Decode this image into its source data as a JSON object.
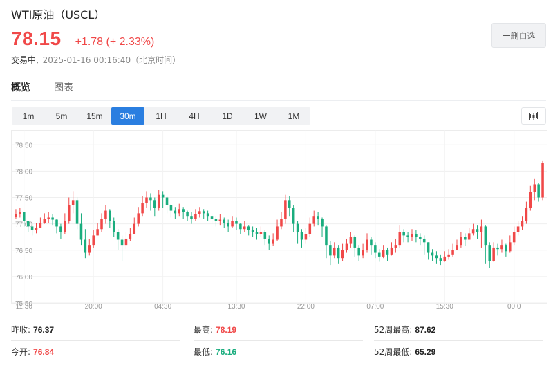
{
  "header": {
    "title": "WTI原油（USCL）",
    "price": "78.15",
    "change": "+1.78 (+ 2.33%)",
    "status": "交易中,",
    "timestamp": "2025-01-16 00:16:40（北京时间）",
    "watch_button": "一删自选"
  },
  "tabs": [
    {
      "label": "概览",
      "active": true
    },
    {
      "label": "图表",
      "active": false
    }
  ],
  "intervals": [
    {
      "label": "1m",
      "active": false
    },
    {
      "label": "5m",
      "active": false
    },
    {
      "label": "15m",
      "active": false
    },
    {
      "label": "30m",
      "active": true
    },
    {
      "label": "1H",
      "active": false
    },
    {
      "label": "4H",
      "active": false
    },
    {
      "label": "1D",
      "active": false
    },
    {
      "label": "1W",
      "active": false
    },
    {
      "label": "1M",
      "active": false
    }
  ],
  "colors": {
    "up": "#f04848",
    "down": "#1aad7e",
    "accent": "#2a7ee0"
  },
  "chart_data": {
    "type": "candlestick",
    "title": "",
    "xlabel": "",
    "ylabel": "",
    "ylim": [
      75.5,
      78.7
    ],
    "y_ticks": [
      "78.50",
      "78.00",
      "77.50",
      "77.00",
      "76.50",
      "76.00",
      "75.50"
    ],
    "x_ticks": [
      {
        "label": "11:30",
        "index": 2
      },
      {
        "label": "20:00",
        "index": 19
      },
      {
        "label": "04:30",
        "index": 36
      },
      {
        "label": "13:30",
        "index": 54
      },
      {
        "label": "22:00",
        "index": 71
      },
      {
        "label": "07:00",
        "index": 88
      },
      {
        "label": "15:30",
        "index": 105
      },
      {
        "label": "00:0",
        "index": 122
      }
    ],
    "closes": [
      77.18,
      77.22,
      77.05,
      76.95,
      76.88,
      76.92,
      77.02,
      77.1,
      77.12,
      77.08,
      76.95,
      76.85,
      77.05,
      77.35,
      77.45,
      77.0,
      76.7,
      76.45,
      76.6,
      76.78,
      76.9,
      77.1,
      77.25,
      77.05,
      76.85,
      76.7,
      76.6,
      76.72,
      76.8,
      77.0,
      77.2,
      77.4,
      77.5,
      77.45,
      77.3,
      77.55,
      77.5,
      77.35,
      77.25,
      77.2,
      77.28,
      77.22,
      77.15,
      77.1,
      77.18,
      77.24,
      77.2,
      77.15,
      77.1,
      77.05,
      77.08,
      77.02,
      76.95,
      77.05,
      77.0,
      76.9,
      76.95,
      76.88,
      76.85,
      76.8,
      76.85,
      76.72,
      76.62,
      76.7,
      76.95,
      77.1,
      77.45,
      77.3,
      77.0,
      76.85,
      76.7,
      76.8,
      77.0,
      77.15,
      77.1,
      76.95,
      76.6,
      76.4,
      76.55,
      76.35,
      76.5,
      76.62,
      76.75,
      76.55,
      76.4,
      76.5,
      76.7,
      76.6,
      76.45,
      76.38,
      76.5,
      76.42,
      76.55,
      76.6,
      76.85,
      76.78,
      76.75,
      76.8,
      76.75,
      76.72,
      76.65,
      76.45,
      76.4,
      76.35,
      76.3,
      76.38,
      76.42,
      76.5,
      76.6,
      76.75,
      76.7,
      76.82,
      76.9,
      76.85,
      76.95,
      76.6,
      76.3,
      76.55,
      76.52,
      76.6,
      76.48,
      76.65,
      76.85,
      76.95,
      77.05,
      77.3,
      77.6,
      77.75,
      77.5,
      78.15
    ],
    "highs": [
      77.28,
      77.3,
      77.18,
      77.05,
      77.0,
      77.02,
      77.12,
      77.2,
      77.22,
      77.18,
      77.1,
      77.0,
      77.2,
      77.5,
      77.62,
      77.5,
      77.2,
      76.9,
      76.72,
      76.88,
      77.02,
      77.2,
      77.35,
      77.28,
      77.12,
      76.9,
      76.78,
      76.85,
      76.92,
      77.12,
      77.32,
      77.52,
      77.62,
      77.58,
      77.5,
      77.65,
      77.62,
      77.52,
      77.38,
      77.32,
      77.38,
      77.32,
      77.25,
      77.22,
      77.28,
      77.32,
      77.28,
      77.25,
      77.2,
      77.15,
      77.18,
      77.12,
      77.08,
      77.15,
      77.12,
      77.02,
      77.05,
      76.98,
      76.95,
      76.92,
      76.95,
      76.88,
      76.78,
      76.82,
      77.08,
      77.22,
      77.55,
      77.52,
      77.35,
      77.05,
      76.9,
      76.92,
      77.12,
      77.25,
      77.22,
      77.12,
      76.98,
      76.68,
      76.65,
      76.6,
      76.62,
      76.72,
      76.85,
      76.78,
      76.6,
      76.62,
      76.82,
      76.75,
      76.65,
      76.52,
      76.6,
      76.55,
      76.65,
      76.72,
      76.98,
      76.9,
      76.85,
      76.9,
      76.88,
      76.82,
      76.78,
      76.62,
      76.52,
      76.48,
      76.42,
      76.48,
      76.52,
      76.62,
      76.7,
      76.85,
      76.82,
      76.92,
      77.0,
      76.98,
      77.08,
      76.98,
      76.65,
      76.65,
      76.62,
      76.7,
      76.62,
      76.78,
      76.95,
      77.05,
      77.15,
      77.42,
      77.72,
      77.85,
      77.78,
      78.19
    ],
    "lows": [
      77.1,
      77.12,
      76.95,
      76.85,
      76.78,
      76.82,
      76.92,
      77.0,
      77.02,
      76.98,
      76.82,
      76.72,
      76.8,
      77.0,
      77.2,
      76.9,
      76.6,
      76.35,
      76.4,
      76.55,
      76.78,
      76.85,
      77.0,
      76.92,
      76.75,
      76.5,
      76.3,
      76.52,
      76.68,
      76.85,
      76.95,
      77.15,
      77.3,
      77.25,
      77.15,
      77.25,
      77.3,
      77.2,
      77.12,
      77.1,
      77.15,
      77.1,
      77.05,
      77.0,
      77.05,
      77.12,
      77.1,
      77.05,
      77.0,
      76.95,
      76.98,
      76.92,
      76.85,
      76.92,
      76.88,
      76.8,
      76.85,
      76.78,
      76.75,
      76.7,
      76.75,
      76.6,
      76.5,
      76.58,
      76.68,
      76.9,
      77.0,
      77.15,
      76.85,
      76.62,
      76.55,
      76.62,
      76.75,
      76.95,
      76.98,
      76.75,
      76.35,
      76.22,
      76.35,
      76.25,
      76.3,
      76.45,
      76.55,
      76.38,
      76.3,
      76.35,
      76.45,
      76.42,
      76.35,
      76.28,
      76.35,
      76.3,
      76.4,
      76.45,
      76.55,
      76.65,
      76.65,
      76.68,
      76.65,
      76.6,
      76.42,
      76.32,
      76.3,
      76.25,
      76.22,
      76.28,
      76.32,
      76.38,
      76.5,
      76.55,
      76.58,
      76.7,
      76.78,
      76.72,
      76.55,
      76.25,
      76.16,
      76.28,
      76.4,
      76.45,
      76.38,
      76.45,
      76.6,
      76.78,
      76.88,
      77.0,
      77.25,
      77.45,
      77.42,
      77.45
    ]
  },
  "stats": {
    "row1": [
      {
        "label": "昨收:",
        "value": "76.37",
        "tone": "neutral"
      },
      {
        "label": "最高:",
        "value": "78.19",
        "tone": "up"
      },
      {
        "label": "52周最高:",
        "value": "87.62",
        "tone": "neutral"
      }
    ],
    "row2": [
      {
        "label": "今开:",
        "value": "76.84",
        "tone": "up"
      },
      {
        "label": "最低:",
        "value": "76.16",
        "tone": "down"
      },
      {
        "label": "52周最低:",
        "value": "65.29",
        "tone": "neutral"
      }
    ]
  }
}
